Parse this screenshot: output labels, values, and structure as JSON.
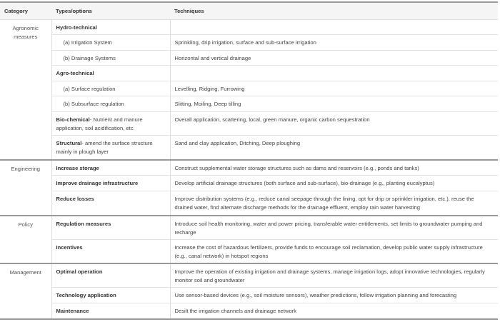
{
  "headers": {
    "category": "Category",
    "types": "Types/options",
    "techniques": "Techniques"
  },
  "groups": [
    {
      "category": "Agronomic measures",
      "rows": [
        {
          "bold": "Hydro-technical",
          "rest": "",
          "indent": false,
          "technique": ""
        },
        {
          "bold": "",
          "rest": "(a) Irrigation System",
          "indent": true,
          "technique": "Sprinkling, drip irrigation, surface and sub-surface irrigation"
        },
        {
          "bold": "",
          "rest": "(b) Drainage Systems",
          "indent": true,
          "technique": "Horizontal and vertical drainage"
        },
        {
          "bold": "Agro-technical",
          "rest": "",
          "indent": false,
          "technique": ""
        },
        {
          "bold": "",
          "rest": "(a) Surface regulation",
          "indent": true,
          "technique": "Levelling, Ridging, Furrowing"
        },
        {
          "bold": "",
          "rest": "(b) Subsurface regulation",
          "indent": true,
          "technique": "Slitting, Moiling, Deep tilling"
        },
        {
          "bold": "Bio-chemical",
          "rest": "- Nutrient and manure application, soil acidification, etc.",
          "indent": false,
          "technique": "Overall application, scattering, local, green manure, organic carbon sequestration"
        },
        {
          "bold": "Structural",
          "rest": "- amend the surface structure mainly in plough layer",
          "indent": false,
          "technique": "Sand and clay application, Ditching, Deep ploughing"
        }
      ]
    },
    {
      "category": "Engineering",
      "rows": [
        {
          "bold": "Increase storage",
          "rest": "",
          "indent": false,
          "technique": "Construct supplemental water storage structures such as dams and reservoirs (e.g., ponds and tanks)"
        },
        {
          "bold": "Improve drainage infrastructure",
          "rest": "",
          "indent": false,
          "technique": "Develop artificial drainage structures (both surface and sub-surface), bio-drainage (e.g., planting eucalyptus)"
        },
        {
          "bold": "Reduce losses",
          "rest": "",
          "indent": false,
          "technique": "Improve distribution systems (e.g., reduce canal seepage through the lining, opt for drip or sprinkler irrigation, etc.), reuse the drained water, find alternate discharge methods for the drainage effluent, employ rain water harvesting"
        }
      ]
    },
    {
      "category": "Policy",
      "rows": [
        {
          "bold": "Regulation measures",
          "rest": "",
          "indent": false,
          "technique": "Introduce soil health monitoring, water and power pricing, transferable water entitlements, set limits to groundwater pumping and recharge"
        },
        {
          "bold": "Incentives",
          "rest": "",
          "indent": false,
          "technique": "Increase the cost of hazardous fertilizers, provide funds to encourage soil reclamation, develop public water supply infrastructure (e.g., canal network) in hotspot regions"
        }
      ]
    },
    {
      "category": "Management",
      "rows": [
        {
          "bold": "Optimal operation",
          "rest": "",
          "indent": false,
          "technique": "Improve the operation of existing irrigation and drainage systems, manage irrigation logs, adopt innovative technologies, regularly monitor soil and groundwater"
        },
        {
          "bold": "Technology application",
          "rest": "",
          "indent": false,
          "technique": "Use sensor-based devices (e.g., soil moisture sensors), weather predictions, follow irrigation planning and forecasting"
        },
        {
          "bold": "Maintenance",
          "rest": "",
          "indent": false,
          "technique": "Desilt the irrigation channels and drainage network"
        }
      ]
    }
  ]
}
